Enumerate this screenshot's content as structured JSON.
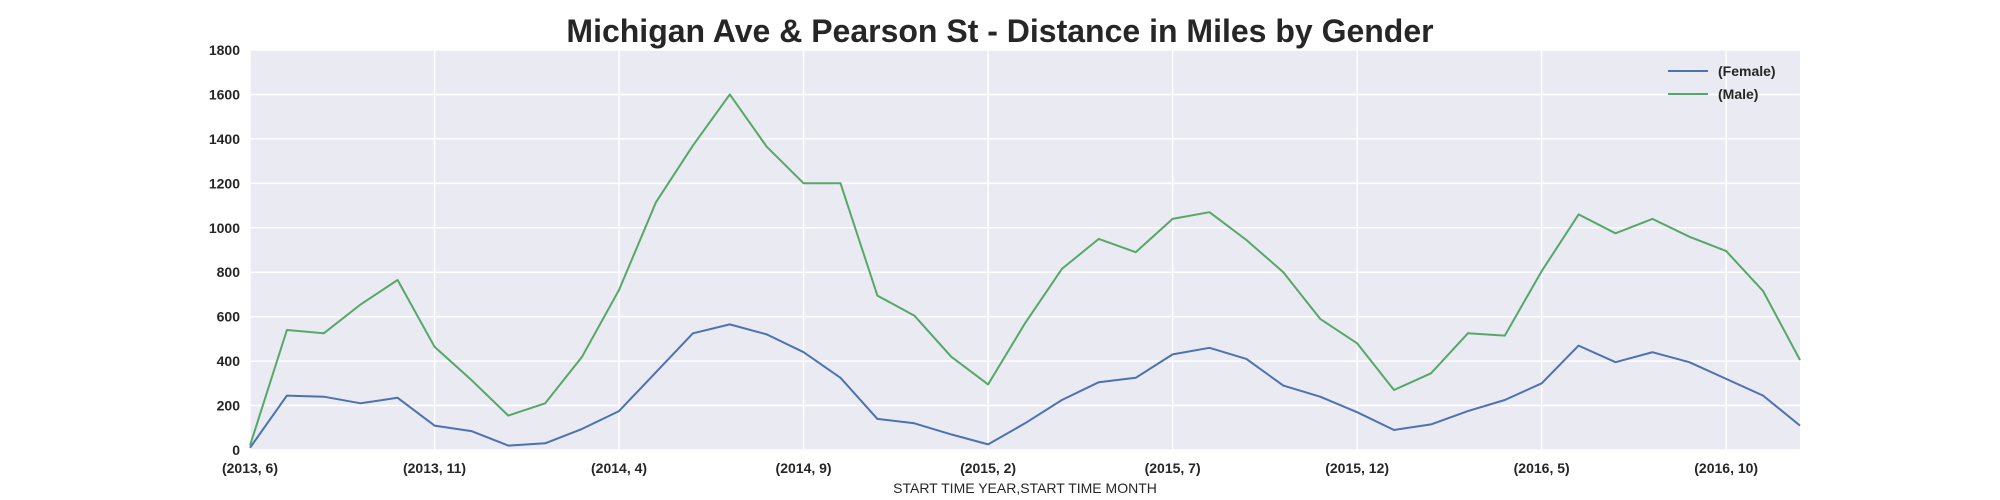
{
  "chart_data": {
    "type": "line",
    "title": "Michigan Ave & Pearson St - Distance in Miles by Gender",
    "xlabel": "START TIME YEAR,START TIME MONTH",
    "ylabel": "",
    "ylim": [
      0,
      1800
    ],
    "yticks": [
      0,
      200,
      400,
      600,
      800,
      1000,
      1200,
      1400,
      1600,
      1800
    ],
    "grid": true,
    "legend_position": "top-right",
    "x_tick_labels": [
      "(2013, 6)",
      "(2013, 11)",
      "(2014, 4)",
      "(2014, 9)",
      "(2015, 2)",
      "(2015, 7)",
      "(2015, 12)",
      "(2016, 5)",
      "(2016, 10)"
    ],
    "x_tick_positions": [
      0,
      5,
      10,
      15,
      20,
      25,
      30,
      35,
      40
    ],
    "x": [
      "(2013, 6)",
      "(2013, 7)",
      "(2013, 8)",
      "(2013, 9)",
      "(2013, 10)",
      "(2013, 11)",
      "(2013, 12)",
      "(2014, 1)",
      "(2014, 2)",
      "(2014, 3)",
      "(2014, 4)",
      "(2014, 5)",
      "(2014, 6)",
      "(2014, 7)",
      "(2014, 8)",
      "(2014, 9)",
      "(2014, 10)",
      "(2014, 11)",
      "(2014, 12)",
      "(2015, 1)",
      "(2015, 2)",
      "(2015, 3)",
      "(2015, 4)",
      "(2015, 5)",
      "(2015, 6)",
      "(2015, 7)",
      "(2015, 8)",
      "(2015, 9)",
      "(2015, 10)",
      "(2015, 11)",
      "(2015, 12)",
      "(2016, 1)",
      "(2016, 2)",
      "(2016, 3)",
      "(2016, 4)",
      "(2016, 5)",
      "(2016, 6)",
      "(2016, 7)",
      "(2016, 8)",
      "(2016, 9)",
      "(2016, 10)",
      "(2016, 11)",
      "(2016, 12)"
    ],
    "series": [
      {
        "name": "(Female)",
        "color": "#4c72b0",
        "values": [
          10,
          245,
          240,
          210,
          235,
          110,
          85,
          20,
          30,
          95,
          175,
          350,
          525,
          565,
          520,
          440,
          325,
          140,
          120,
          70,
          25,
          120,
          225,
          305,
          325,
          430,
          460,
          410,
          290,
          240,
          170,
          90,
          115,
          175,
          225,
          300,
          470,
          395,
          440,
          395,
          320,
          245,
          110
        ]
      },
      {
        "name": "(Male)",
        "color": "#55a868",
        "values": [
          20,
          540,
          525,
          655,
          765,
          465,
          315,
          155,
          210,
          420,
          720,
          1115,
          1370,
          1600,
          1365,
          1200,
          1200,
          695,
          605,
          420,
          295,
          570,
          815,
          950,
          890,
          1040,
          1070,
          945,
          800,
          590,
          480,
          270,
          345,
          525,
          515,
          805,
          1060,
          975,
          1040,
          960,
          895,
          715,
          405
        ]
      }
    ]
  }
}
